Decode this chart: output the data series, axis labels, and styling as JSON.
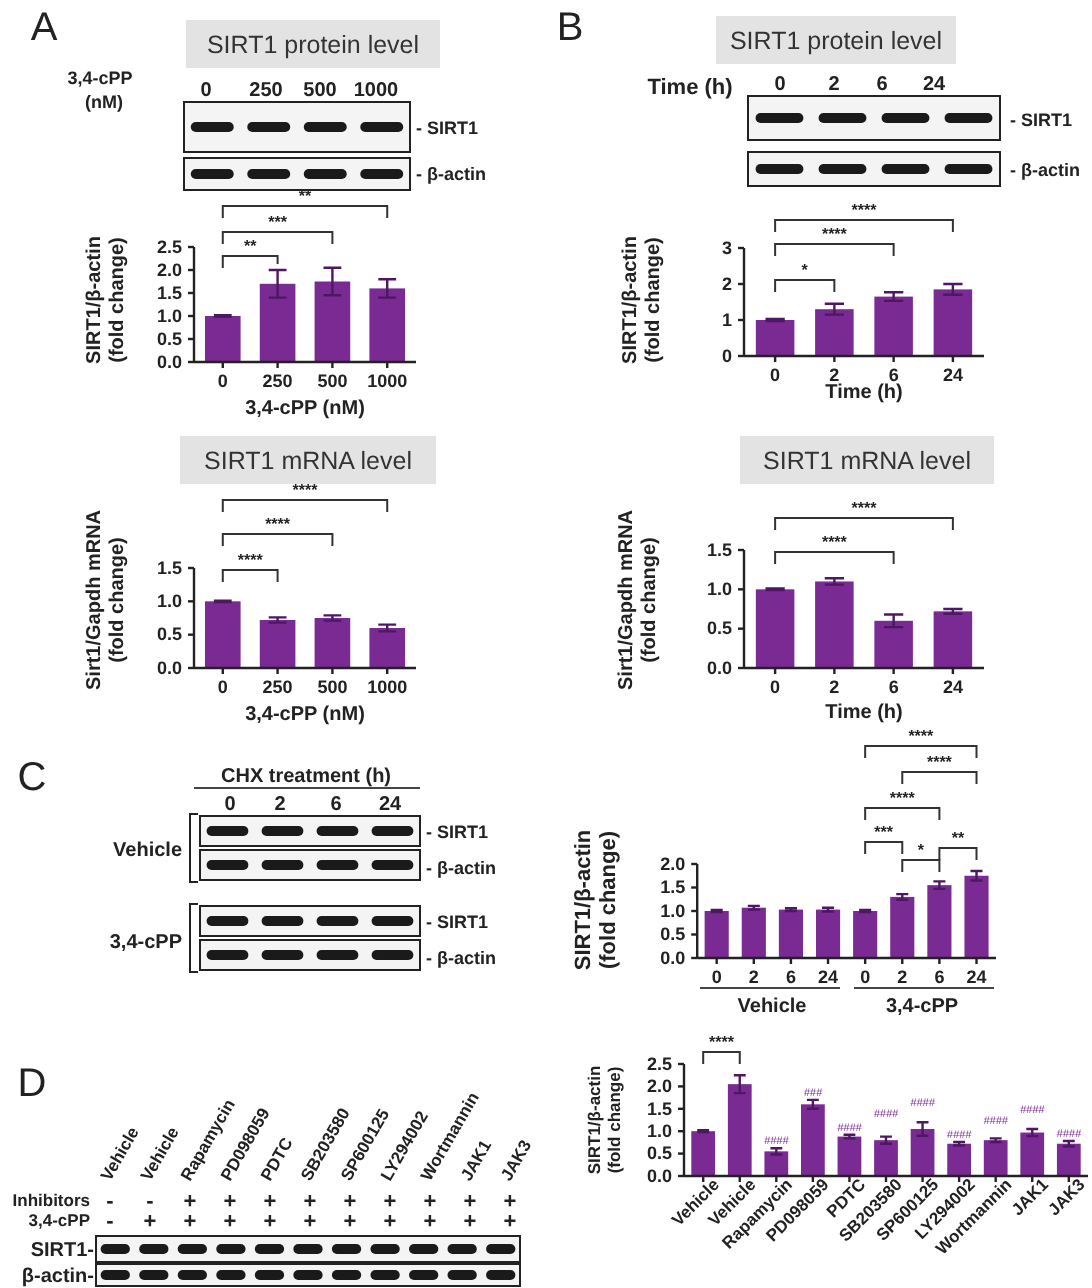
{
  "chart_data": [
    {
      "type": "bar",
      "title": "SIRT1 protein level",
      "ylabel": "SIRT1/β-actin\n(fold change)",
      "xlabel": "3,4-cPP (nM)",
      "categories": [
        "0",
        "250",
        "500",
        "1000"
      ],
      "values": [
        1.0,
        1.7,
        1.75,
        1.6
      ],
      "errors": [
        0.02,
        0.3,
        0.3,
        0.2
      ],
      "color": "#7a2a93",
      "ylim": [
        0,
        2.5
      ],
      "yticks": [
        {
          "value": 0,
          "label": "0.0"
        },
        {
          "value": 0.5,
          "label": "0.5"
        },
        {
          "value": 1,
          "label": "1.0"
        },
        {
          "value": 1.5,
          "label": "1.5"
        },
        {
          "value": 2,
          "label": "2.0"
        },
        {
          "value": 2.5,
          "label": "2.5"
        }
      ],
      "grid": false,
      "annotations": [
        "A",
        "3,4-cPP",
        "(nM)",
        "0",
        "250",
        "500",
        "1000",
        "- SIRT1",
        "- β-actin",
        "**",
        "***",
        "**"
      ]
    },
    {
      "type": "bar",
      "title": "SIRT1 protein level",
      "ylabel": "SIRT1/β-actin\n(fold change)",
      "xlabel": "Time (h)",
      "categories": [
        "0",
        "2",
        "6",
        "24"
      ],
      "values": [
        1.0,
        1.3,
        1.65,
        1.85
      ],
      "errors": [
        0.03,
        0.15,
        0.12,
        0.15
      ],
      "color": "#7a2a93",
      "ylim": [
        0,
        3
      ],
      "yticks": [
        0,
        1,
        2,
        3
      ],
      "grid": false,
      "annotations": [
        "B",
        "Time (h)",
        "0",
        "2",
        "6",
        "24",
        "- SIRT1",
        "- β-actin",
        "*",
        "****",
        "****"
      ]
    },
    {
      "type": "bar",
      "title": "SIRT1 mRNA level",
      "ylabel": "Sirt1/Gapdh mRNA\n(fold change)",
      "xlabel": "3,4-cPP (nM)",
      "categories": [
        "0",
        "250",
        "500",
        "1000"
      ],
      "values": [
        1.0,
        0.72,
        0.75,
        0.6
      ],
      "errors": [
        0.01,
        0.04,
        0.04,
        0.05
      ],
      "color": "#7a2a93",
      "ylim": [
        0,
        1.5
      ],
      "yticks": [
        {
          "value": 0,
          "label": "0.0"
        },
        {
          "value": 0.5,
          "label": "0.5"
        },
        {
          "value": 1,
          "label": "1.0"
        },
        {
          "value": 1.5,
          "label": "1.5"
        }
      ],
      "grid": false,
      "annotations": [
        "****",
        "****",
        "****"
      ]
    },
    {
      "type": "bar",
      "title": "SIRT1 mRNA level",
      "ylabel": "Sirt1/Gapdh mRNA\n(fold change)",
      "xlabel": "Time (h)",
      "categories": [
        "0",
        "2",
        "6",
        "24"
      ],
      "values": [
        1.0,
        1.1,
        0.6,
        0.72
      ],
      "errors": [
        0.01,
        0.04,
        0.08,
        0.03
      ],
      "color": "#7a2a93",
      "ylim": [
        0,
        1.5
      ],
      "yticks": [
        {
          "value": 0,
          "label": "0.0"
        },
        {
          "value": 0.5,
          "label": "0.5"
        },
        {
          "value": 1,
          "label": "1.0"
        },
        {
          "value": 1.5,
          "label": "1.5"
        }
      ],
      "grid": false,
      "annotations": [
        "****",
        "****"
      ]
    },
    {
      "type": "bar",
      "ylabel": "SIRT1/β-actin\n(fold change)",
      "categories": [
        "0",
        "2",
        "6",
        "24",
        "0",
        "2",
        "6",
        "24"
      ],
      "values": [
        1.0,
        1.07,
        1.03,
        1.03,
        1.0,
        1.3,
        1.55,
        1.75
      ],
      "errors": [
        0.02,
        0.04,
        0.03,
        0.04,
        0.02,
        0.06,
        0.08,
        0.1
      ],
      "color": "#7a2a93",
      "ylim": [
        0,
        2
      ],
      "yticks": [
        {
          "value": 0,
          "label": "0.0"
        },
        {
          "value": 0.5,
          "label": "0.5"
        },
        {
          "value": 1,
          "label": "1.0"
        },
        {
          "value": 1.5,
          "label": "1.5"
        },
        {
          "value": 2,
          "label": "2.0"
        }
      ],
      "grid": false,
      "annotations": [
        "C",
        "CHX treatment (h)",
        "0",
        "2",
        "6",
        "24",
        "Vehicle",
        "3,4-cPP",
        "- SIRT1",
        "- β-actin",
        "- SIRT1",
        "- β-actin",
        "Vehicle",
        "3,4-cPP",
        "***",
        "*",
        "**",
        "****",
        "****",
        "****"
      ]
    },
    {
      "type": "bar",
      "ylabel": "SIRT1/β-actin\n(fold change)",
      "categories": [
        "Vehicle",
        "Vehicle",
        "Rapamycin",
        "PD098059",
        "PDTC",
        "SB203580",
        "SP600125",
        "LY294002",
        "Wortmannin",
        "JAK1",
        "JAK3"
      ],
      "values": [
        1.0,
        2.05,
        0.55,
        1.6,
        0.88,
        0.8,
        1.05,
        0.72,
        0.8,
        0.97,
        0.72
      ],
      "errors": [
        0.02,
        0.2,
        0.07,
        0.1,
        0.04,
        0.08,
        0.15,
        0.04,
        0.04,
        0.08,
        0.06
      ],
      "color": "#7a2a93",
      "ylim": [
        0,
        2.5
      ],
      "yticks": [
        {
          "value": 0,
          "label": "0.0"
        },
        {
          "value": 0.5,
          "label": "0.5"
        },
        {
          "value": 1,
          "label": "1.0"
        },
        {
          "value": 1.5,
          "label": "1.5"
        },
        {
          "value": 2,
          "label": "2.0"
        },
        {
          "value": 2.5,
          "label": "2.5"
        }
      ],
      "grid": false,
      "annotations": [
        "D",
        "Vehicle",
        "Vehicle",
        "Rapamycin",
        "PD098059",
        "PDTC",
        "SB203580",
        "SP600125",
        "LY294002",
        "Wortmannin",
        "JAK1",
        "JAK3",
        "Inhibitors",
        "3,4-cPP",
        "-",
        "-",
        "+",
        "+",
        "+",
        "+",
        "+",
        "+",
        "+",
        "+",
        "+",
        "-",
        "+",
        "+",
        "+",
        "+",
        "+",
        "+",
        "+",
        "+",
        "+",
        "+",
        "SIRT1-",
        "β-actin-",
        "****",
        {
          "text": "####",
          "x": "Rapamycin",
          "y": 0.62
        },
        {
          "text": "###",
          "x": "PD098059",
          "y": 1.7
        },
        {
          "text": "####",
          "x": "PDTC",
          "y": 0.92
        },
        {
          "text": "####",
          "x": "SB203580",
          "y": 0.88
        },
        {
          "text": "####",
          "x": "SP600125",
          "y": 1.2
        },
        {
          "text": "####",
          "x": "LY294002",
          "y": 0.76
        },
        {
          "text": "####",
          "x": "Wortmannin",
          "y": 0.84
        },
        {
          "text": "####",
          "x": "JAK1",
          "y": 1.05
        },
        {
          "text": "####",
          "x": "JAK3",
          "y": 0.78
        }
      ]
    }
  ]
}
